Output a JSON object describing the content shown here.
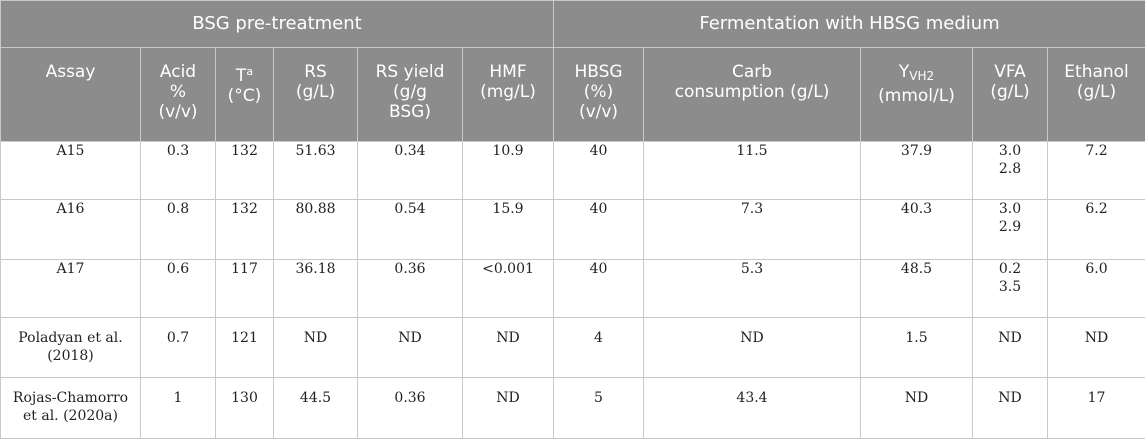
{
  "header": {
    "group_pretreatment": "BSG pre-treatment",
    "group_fermentation": "Fermentation with HBSG medium",
    "columns": {
      "assay": "Assay",
      "acid_l1": "Acid",
      "acid_l2": "%",
      "acid_l3": "(v/v)",
      "temp_base": "T",
      "temp_sup": "a",
      "temp_unit": "(°C)",
      "rs_l1": "RS",
      "rs_l2": "(g/L)",
      "rsy_l1": "RS yield",
      "rsy_l2": "(g/g",
      "rsy_l3": "BSG)",
      "hmf_l1": "HMF",
      "hmf_l2": "(mg/L)",
      "hbsg_l1": "HBSG",
      "hbsg_l2": "(%)",
      "hbsg_l3": "(v/v)",
      "carb_l1": "Carb",
      "carb_l2": "consumption (g/L)",
      "y_base": "Y",
      "y_sub": "VH2",
      "y_unit": "(mmol/L)",
      "vfa_l1": "VFA",
      "vfa_l2": "(g/L)",
      "eth_l1": "Ethanol",
      "eth_l2": "(g/L)"
    }
  },
  "rows": [
    {
      "assay_l1": "A15",
      "assay_l2": "",
      "acid": "0.3",
      "temp": "132",
      "rs": "51.63",
      "rs_yield": "0.34",
      "hmf": "10.9",
      "hbsg": "40",
      "carb": "11.5",
      "yvh2": "37.9",
      "vfa_l1": "3.0",
      "vfa_l2": "2.8",
      "ethanol": "7.2"
    },
    {
      "assay_l1": "A16",
      "assay_l2": "",
      "acid": "0.8",
      "temp": "132",
      "rs": "80.88",
      "rs_yield": "0.54",
      "hmf": "15.9",
      "hbsg": "40",
      "carb": "7.3",
      "yvh2": "40.3",
      "vfa_l1": "3.0",
      "vfa_l2": "2.9",
      "ethanol": "6.2"
    },
    {
      "assay_l1": "A17",
      "assay_l2": "",
      "acid": "0.6",
      "temp": "117",
      "rs": "36.18",
      "rs_yield": "0.36",
      "hmf": "<0.001",
      "hbsg": "40",
      "carb": "5.3",
      "yvh2": "48.5",
      "vfa_l1": "0.2",
      "vfa_l2": "3.5",
      "ethanol": "6.0"
    },
    {
      "assay_l1": "Poladyan et al.",
      "assay_l2": "(2018)",
      "acid": "0.7",
      "temp": "121",
      "rs": "ND",
      "rs_yield": "ND",
      "hmf": "ND",
      "hbsg": "4",
      "carb": "ND",
      "yvh2": "1.5",
      "vfa_l1": "ND",
      "vfa_l2": "",
      "ethanol": "ND"
    },
    {
      "assay_l1": "Rojas-Chamorro",
      "assay_l2": "et al. (2020a)",
      "acid": "1",
      "temp": "130",
      "rs": "44.5",
      "rs_yield": "0.36",
      "hmf": "ND",
      "hbsg": "5",
      "carb": "43.4",
      "yvh2": "ND",
      "vfa_l1": "ND",
      "vfa_l2": "",
      "ethanol": "17"
    }
  ]
}
